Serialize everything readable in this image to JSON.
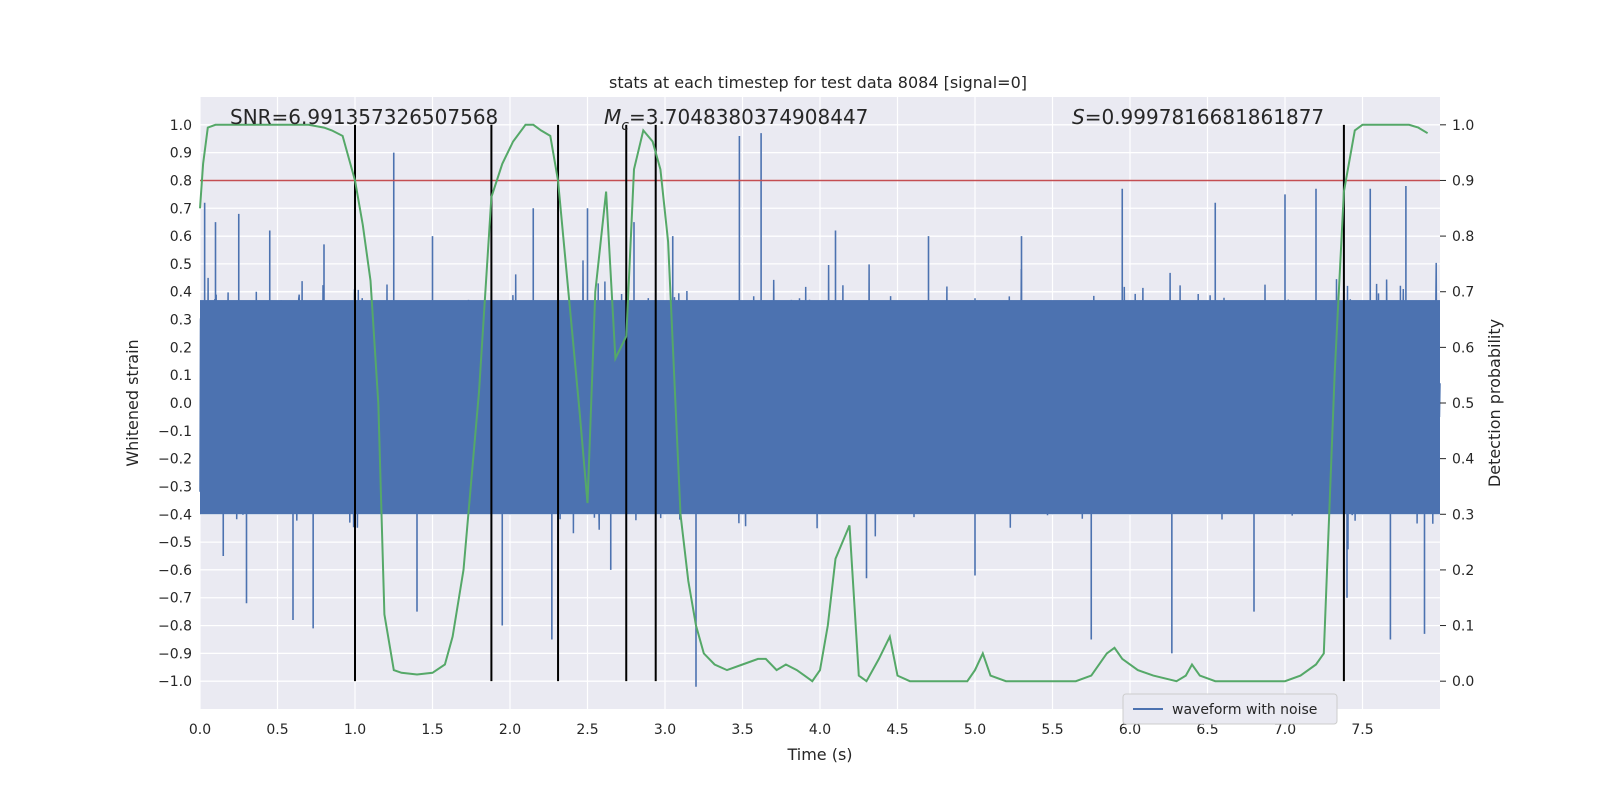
{
  "chart_data": {
    "type": "line",
    "title": "stats at each timestep for test data 8084 [signal=0]",
    "xlabel": "Time (s)",
    "ylabel": "Whitened strain",
    "y2label": "Detection probability",
    "xlim": [
      0,
      8
    ],
    "ylim": [
      -1.1,
      1.1
    ],
    "y2lim": [
      -0.05,
      1.05
    ],
    "x_ticks": [
      0.0,
      0.5,
      1.0,
      1.5,
      2.0,
      2.5,
      3.0,
      3.5,
      4.0,
      4.5,
      5.0,
      5.5,
      6.0,
      6.5,
      7.0,
      7.5
    ],
    "y_ticks": [
      -1.0,
      -0.9,
      -0.8,
      -0.7,
      -0.6,
      -0.5,
      -0.4,
      -0.3,
      -0.2,
      -0.1,
      0.0,
      0.1,
      0.2,
      0.3,
      0.4,
      0.5,
      0.6,
      0.7,
      0.8,
      0.9,
      1.0
    ],
    "y2_ticks": [
      0.0,
      0.1,
      0.2,
      0.3,
      0.4,
      0.5,
      0.6,
      0.7,
      0.8,
      0.9,
      1.0
    ],
    "grid": true,
    "legend": {
      "placement": "lower-right",
      "entries": [
        {
          "name": "waveform with noise",
          "color": "#4c72b0"
        }
      ]
    },
    "annotations": {
      "snr": "SNR=6.991357326507568",
      "mc_symbol": "M",
      "mc_sub": "c",
      "mc_value": "=3.7048380374908447",
      "s_symbol": "S",
      "s_value": "=0.9997816681861877"
    },
    "threshold": {
      "axis": "y2",
      "value": 0.9,
      "color": "#c44e52"
    },
    "event_lines": [
      1.0,
      1.88,
      2.31,
      2.75,
      2.94,
      7.38
    ],
    "waveform": {
      "name": "waveform with noise",
      "color": "#4c72b0",
      "x_range": [
        0.0,
        8.0
      ],
      "body_amplitude": 0.44,
      "peaks": [
        [
          0.03,
          0.72
        ],
        [
          0.1,
          0.65
        ],
        [
          0.15,
          -0.55
        ],
        [
          0.25,
          0.68
        ],
        [
          0.3,
          -0.72
        ],
        [
          0.45,
          0.62
        ],
        [
          0.6,
          -0.78
        ],
        [
          0.73,
          -0.81
        ],
        [
          0.8,
          0.57
        ],
        [
          1.25,
          0.9
        ],
        [
          1.4,
          -0.75
        ],
        [
          1.5,
          0.6
        ],
        [
          1.95,
          -0.8
        ],
        [
          2.15,
          0.7
        ],
        [
          2.27,
          -0.85
        ],
        [
          2.5,
          0.7
        ],
        [
          2.65,
          -0.6
        ],
        [
          2.8,
          0.65
        ],
        [
          3.05,
          0.6
        ],
        [
          3.2,
          -1.02
        ],
        [
          3.48,
          0.96
        ],
        [
          3.62,
          0.97
        ],
        [
          4.1,
          0.62
        ],
        [
          4.3,
          -0.63
        ],
        [
          4.7,
          0.6
        ],
        [
          5.0,
          -0.62
        ],
        [
          5.3,
          0.6
        ],
        [
          5.75,
          -0.85
        ],
        [
          5.95,
          0.77
        ],
        [
          6.27,
          -0.9
        ],
        [
          6.55,
          0.72
        ],
        [
          6.8,
          -0.75
        ],
        [
          7.0,
          0.75
        ],
        [
          7.2,
          0.77
        ],
        [
          7.4,
          -0.7
        ],
        [
          7.55,
          0.77
        ],
        [
          7.68,
          -0.85
        ],
        [
          7.78,
          0.78
        ],
        [
          7.9,
          -0.83
        ]
      ]
    },
    "probability": {
      "color": "#55a868",
      "x": [
        0.0,
        0.02,
        0.05,
        0.1,
        0.2,
        0.3,
        0.4,
        0.5,
        0.6,
        0.7,
        0.8,
        0.85,
        0.92,
        1.0,
        1.05,
        1.1,
        1.15,
        1.19,
        1.25,
        1.3,
        1.4,
        1.5,
        1.58,
        1.63,
        1.7,
        1.8,
        1.88,
        1.95,
        2.02,
        2.1,
        2.15,
        2.2,
        2.26,
        2.31,
        2.36,
        2.45,
        2.5,
        2.55,
        2.62,
        2.68,
        2.75,
        2.8,
        2.86,
        2.92,
        2.97,
        3.02,
        3.1,
        3.15,
        3.2,
        3.25,
        3.32,
        3.4,
        3.5,
        3.6,
        3.65,
        3.72,
        3.78,
        3.85,
        3.9,
        3.95,
        4.0,
        4.05,
        4.1,
        4.19,
        4.25,
        4.3,
        4.38,
        4.45,
        4.5,
        4.58,
        4.7,
        4.8,
        4.95,
        5.0,
        5.05,
        5.1,
        5.2,
        5.35,
        5.5,
        5.65,
        5.75,
        5.85,
        5.9,
        5.95,
        6.05,
        6.15,
        6.3,
        6.36,
        6.4,
        6.45,
        6.55,
        6.65,
        6.75,
        6.85,
        7.0,
        7.1,
        7.2,
        7.25,
        7.32,
        7.38,
        7.45,
        7.5,
        7.6,
        7.7,
        7.8,
        7.86,
        7.92
      ],
      "y": [
        0.85,
        0.93,
        0.995,
        1.0,
        1.0,
        1.0,
        1.0,
        1.0,
        1.0,
        1.0,
        0.995,
        0.99,
        0.98,
        0.9,
        0.82,
        0.72,
        0.5,
        0.12,
        0.02,
        0.015,
        0.012,
        0.015,
        0.03,
        0.08,
        0.2,
        0.52,
        0.87,
        0.93,
        0.97,
        1.0,
        1.0,
        0.99,
        0.98,
        0.9,
        0.75,
        0.48,
        0.32,
        0.7,
        0.88,
        0.58,
        0.62,
        0.92,
        0.99,
        0.97,
        0.92,
        0.79,
        0.3,
        0.18,
        0.1,
        0.05,
        0.03,
        0.02,
        0.03,
        0.04,
        0.04,
        0.02,
        0.03,
        0.02,
        0.01,
        0.0,
        0.02,
        0.1,
        0.22,
        0.28,
        0.01,
        0.0,
        0.04,
        0.08,
        0.01,
        0.0,
        0.0,
        0.0,
        0.0,
        0.02,
        0.05,
        0.01,
        0.0,
        0.0,
        0.0,
        0.0,
        0.01,
        0.05,
        0.06,
        0.04,
        0.02,
        0.01,
        0.0,
        0.01,
        0.03,
        0.01,
        0.0,
        0.0,
        0.0,
        0.0,
        0.0,
        0.01,
        0.03,
        0.05,
        0.55,
        0.88,
        0.99,
        1.0,
        1.0,
        1.0,
        1.0,
        0.995,
        0.985
      ]
    }
  }
}
